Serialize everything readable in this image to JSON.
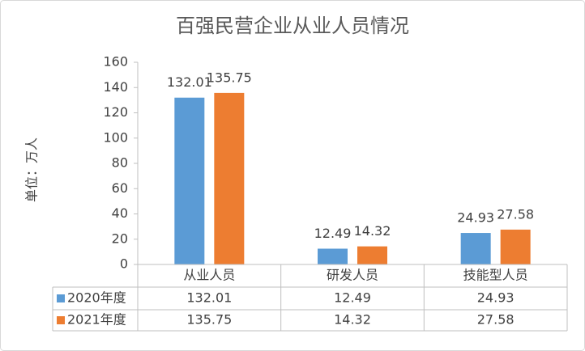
{
  "chart_data": {
    "type": "bar",
    "title": "百强民营企业从业人员情况",
    "y_label": "单位：万人",
    "categories": [
      "从业人员",
      "研发人员",
      "技能型人员"
    ],
    "series": [
      {
        "name": "2020年度",
        "color": "#5b9bd5",
        "values": [
          132.01,
          12.49,
          24.93
        ]
      },
      {
        "name": "2021年度",
        "color": "#ed7d31",
        "values": [
          135.75,
          14.32,
          27.58
        ]
      }
    ],
    "ylim": [
      0,
      160
    ],
    "yticks": [
      0,
      20,
      40,
      60,
      80,
      100,
      120,
      140,
      160
    ],
    "grid": false,
    "data_table": true
  }
}
